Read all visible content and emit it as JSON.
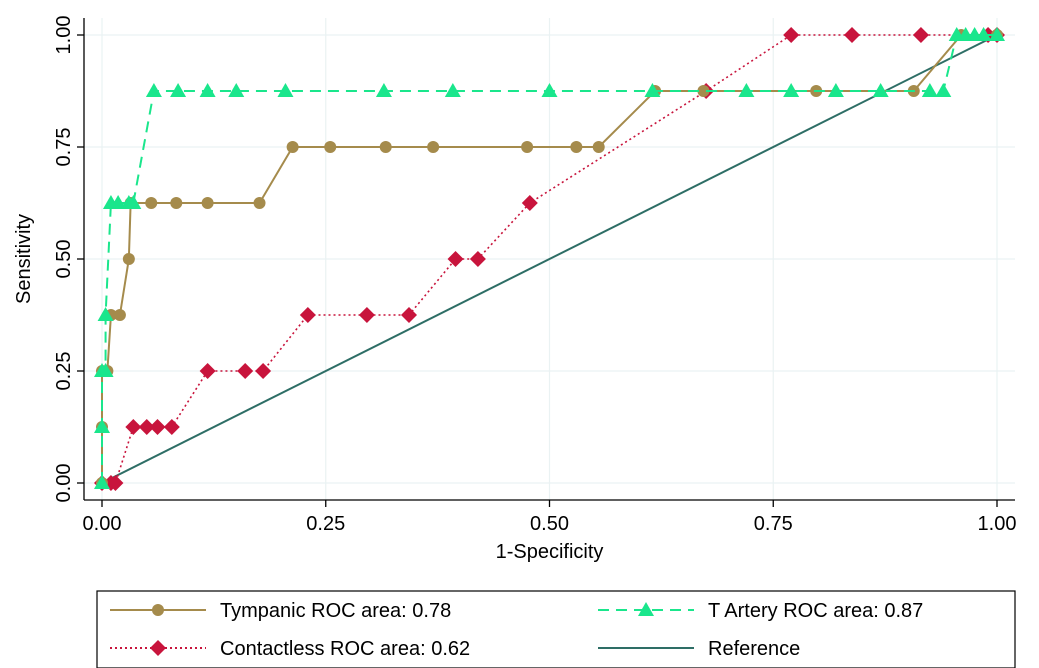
{
  "chart_data": {
    "type": "line",
    "title": "",
    "xlabel": "1-Specificity",
    "ylabel": "Sensitivity",
    "xlim": [
      0,
      1
    ],
    "ylim": [
      0,
      1
    ],
    "x_ticks": [
      0,
      0.25,
      0.5,
      0.75,
      1
    ],
    "y_ticks": [
      0,
      0.25,
      0.5,
      0.75,
      1
    ],
    "x_tick_labels": [
      "0.00",
      "0.25",
      "0.50",
      "0.75",
      "1.00"
    ],
    "y_tick_labels": [
      "0.00",
      "0.25",
      "0.50",
      "0.75",
      "1.00"
    ],
    "grid": true,
    "legend_position": "bottom",
    "series": [
      {
        "name": "Tympanic ROC area: 0.78",
        "color": "#a58b4c",
        "marker": "circle",
        "line": "solid",
        "points": [
          [
            0,
            0
          ],
          [
            0,
            0.125
          ],
          [
            0,
            0.25
          ],
          [
            0.006,
            0.25
          ],
          [
            0.01,
            0.375
          ],
          [
            0.02,
            0.375
          ],
          [
            0.03,
            0.5
          ],
          [
            0.032,
            0.625
          ],
          [
            0.055,
            0.625
          ],
          [
            0.083,
            0.625
          ],
          [
            0.118,
            0.625
          ],
          [
            0.176,
            0.625
          ],
          [
            0.213,
            0.75
          ],
          [
            0.255,
            0.75
          ],
          [
            0.317,
            0.75
          ],
          [
            0.37,
            0.75
          ],
          [
            0.475,
            0.75
          ],
          [
            0.53,
            0.75
          ],
          [
            0.555,
            0.75
          ],
          [
            0.618,
            0.875
          ],
          [
            0.672,
            0.875
          ],
          [
            0.798,
            0.875
          ],
          [
            0.907,
            0.875
          ],
          [
            0.96,
            1
          ],
          [
            1,
            1
          ]
        ]
      },
      {
        "name": "T Artery ROC area: 0.87",
        "color": "#1ae68c",
        "marker": "triangle",
        "line": "dashed",
        "points": [
          [
            0,
            0
          ],
          [
            0,
            0.125
          ],
          [
            0,
            0.25
          ],
          [
            0.004,
            0.25
          ],
          [
            0.004,
            0.375
          ],
          [
            0.01,
            0.625
          ],
          [
            0.018,
            0.625
          ],
          [
            0.03,
            0.625
          ],
          [
            0.035,
            0.625
          ],
          [
            0.058,
            0.875
          ],
          [
            0.085,
            0.875
          ],
          [
            0.118,
            0.875
          ],
          [
            0.15,
            0.875
          ],
          [
            0.205,
            0.875
          ],
          [
            0.315,
            0.875
          ],
          [
            0.392,
            0.875
          ],
          [
            0.5,
            0.875
          ],
          [
            0.615,
            0.875
          ],
          [
            0.72,
            0.875
          ],
          [
            0.77,
            0.875
          ],
          [
            0.82,
            0.875
          ],
          [
            0.87,
            0.875
          ],
          [
            0.925,
            0.875
          ],
          [
            0.94,
            0.875
          ],
          [
            0.955,
            1
          ],
          [
            0.965,
            1
          ],
          [
            0.975,
            1
          ],
          [
            0.985,
            1
          ],
          [
            1,
            1
          ]
        ]
      },
      {
        "name": "Contactless ROC area: 0.62",
        "color": "#c8143c",
        "marker": "diamond",
        "line": "dotted",
        "points": [
          [
            0,
            0
          ],
          [
            0.01,
            0
          ],
          [
            0.015,
            0
          ],
          [
            0.035,
            0.125
          ],
          [
            0.05,
            0.125
          ],
          [
            0.062,
            0.125
          ],
          [
            0.078,
            0.125
          ],
          [
            0.118,
            0.25
          ],
          [
            0.16,
            0.25
          ],
          [
            0.18,
            0.25
          ],
          [
            0.23,
            0.375
          ],
          [
            0.296,
            0.375
          ],
          [
            0.343,
            0.375
          ],
          [
            0.395,
            0.5
          ],
          [
            0.42,
            0.5
          ],
          [
            0.478,
            0.625
          ],
          [
            0.675,
            0.875
          ],
          [
            0.77,
            1
          ],
          [
            0.838,
            1
          ],
          [
            0.915,
            1
          ],
          [
            0.99,
            1
          ],
          [
            1,
            1
          ]
        ]
      },
      {
        "name": "Reference",
        "color": "#2e6e66",
        "marker": "none",
        "line": "solid",
        "points": [
          [
            0,
            0
          ],
          [
            1,
            1
          ]
        ]
      }
    ]
  }
}
